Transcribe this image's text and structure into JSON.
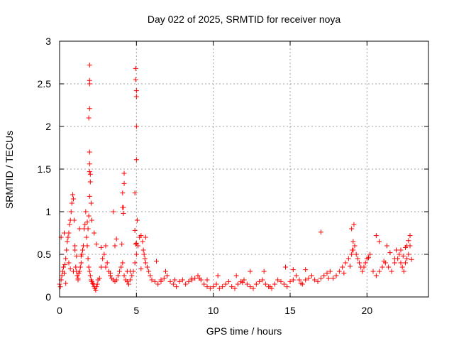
{
  "chart_data": {
    "type": "scatter",
    "title": "Day 022 of 2025, SRMTID for receiver noya",
    "xlabel": "GPS time / hours",
    "ylabel": "SRMTID / TECUs",
    "xlim": [
      0,
      24
    ],
    "ylim": [
      0,
      3
    ],
    "xticks": [
      0,
      5,
      10,
      15,
      20
    ],
    "yticks": [
      0,
      0.5,
      1,
      1.5,
      2,
      2.5,
      3
    ],
    "xtick_labels": [
      "0",
      "5",
      "10",
      "15",
      "20"
    ],
    "ytick_labels": [
      "0",
      "0.5",
      "1",
      "1.5",
      "2",
      "2.5",
      "3"
    ],
    "grid": true,
    "legend": "none",
    "marker": "+",
    "color": "#ff0000",
    "series": [
      {
        "name": "SRMTID",
        "x": [
          0.0,
          0.05,
          0.1,
          0.15,
          0.2,
          0.25,
          0.3,
          0.35,
          0.4,
          0.45,
          0.5,
          0.55,
          0.6,
          0.65,
          0.7,
          0.75,
          0.8,
          0.85,
          0.9,
          0.95,
          1.0,
          1.05,
          1.1,
          1.15,
          1.2,
          1.25,
          1.3,
          1.35,
          1.4,
          1.45,
          1.5,
          1.55,
          1.6,
          1.65,
          1.7,
          1.75,
          1.8,
          1.85,
          1.9,
          1.95,
          2.0,
          2.05,
          2.1,
          2.15,
          2.2,
          2.25,
          2.3,
          2.35,
          2.4,
          2.45,
          2.5,
          2.6,
          2.7,
          2.8,
          2.9,
          3.0,
          3.1,
          3.2,
          3.3,
          3.4,
          3.5,
          3.6,
          3.7,
          3.8,
          3.9,
          4.0,
          4.1,
          4.2,
          4.3,
          4.4,
          4.5,
          4.6,
          4.7,
          4.8,
          4.9,
          5.0,
          5.1,
          5.2,
          5.3,
          5.4,
          5.5,
          5.6,
          5.7,
          5.8,
          5.9,
          6.0,
          6.2,
          6.4,
          6.6,
          6.8,
          7.0,
          7.2,
          7.4,
          7.6,
          7.8,
          8.0,
          8.2,
          8.4,
          8.6,
          8.8,
          9.0,
          9.2,
          9.4,
          9.6,
          9.8,
          10.0,
          10.2,
          10.4,
          10.6,
          10.8,
          11.0,
          11.2,
          11.4,
          11.6,
          11.8,
          12.0,
          12.2,
          12.4,
          12.6,
          12.8,
          13.0,
          13.2,
          13.4,
          13.6,
          13.8,
          14.0,
          14.2,
          14.4,
          14.6,
          14.8,
          15.0,
          15.2,
          15.4,
          15.6,
          15.8,
          16.0,
          16.2,
          16.4,
          16.6,
          16.8,
          17.0,
          17.2,
          17.4,
          17.6,
          17.8,
          18.0,
          18.2,
          18.4,
          18.6,
          18.8,
          19.0,
          19.1,
          19.2,
          19.3,
          19.4,
          19.5,
          19.6,
          19.7,
          19.8,
          19.9,
          20.0,
          20.2,
          20.4,
          20.6,
          20.8,
          21.0,
          21.2,
          21.4,
          21.6,
          21.8,
          22.0,
          22.1,
          22.2,
          22.3,
          22.4,
          22.5,
          22.6,
          22.7,
          22.8,
          0.1,
          0.3,
          0.6,
          0.9,
          1.15,
          1.2,
          1.3,
          1.9,
          1.95,
          1.95,
          1.95,
          1.95,
          1.95,
          1.95,
          1.9,
          1.95,
          1.95,
          2.0,
          2.0,
          2.05,
          2.1,
          1.85,
          1.8,
          4.1,
          4.15,
          4.2,
          4.2,
          4.1,
          4.15,
          4.9,
          4.95,
          4.95,
          4.95,
          5.0,
          5.0,
          5.0,
          5.0,
          4.9,
          5.05,
          5.0,
          1.0,
          1.4,
          2.25,
          3.5,
          3.6,
          3.7,
          4.05,
          5.45,
          5.55,
          5.6,
          19.05,
          19.1,
          19.15,
          19.0,
          20.6,
          20.8,
          21.3,
          21.5,
          21.8,
          22.2,
          22.35,
          22.5,
          22.6,
          22.7,
          22.8,
          17.0,
          15.2,
          13.3,
          11.5,
          9.1,
          7.5,
          6.6,
          18.5,
          16.0,
          14.7,
          12.4,
          10.3,
          8.6,
          0.4,
          0.7,
          1.1,
          2.4,
          2.7,
          3.0,
          3.3,
          4.4,
          4.6,
          5.3,
          6.3,
          6.9,
          9.6,
          11.9,
          13.7,
          15.7,
          17.5,
          18.9,
          20.1,
          21.1,
          21.9,
          22.9
        ],
        "y": [
          0.15,
          0.12,
          0.2,
          0.25,
          0.3,
          0.35,
          0.28,
          0.38,
          0.45,
          0.55,
          0.65,
          0.7,
          0.75,
          0.85,
          0.9,
          1.0,
          1.1,
          1.2,
          1.15,
          0.9,
          0.6,
          0.35,
          0.3,
          0.25,
          0.2,
          0.28,
          0.3,
          0.35,
          0.4,
          0.5,
          0.55,
          0.6,
          0.8,
          0.85,
          1.0,
          0.7,
          0.6,
          0.45,
          0.35,
          0.3,
          0.25,
          0.2,
          0.18,
          0.16,
          0.15,
          0.12,
          0.1,
          0.08,
          0.12,
          0.15,
          0.2,
          0.22,
          0.35,
          0.45,
          0.5,
          0.6,
          0.4,
          0.3,
          0.25,
          0.22,
          0.2,
          0.18,
          0.2,
          0.25,
          0.3,
          0.35,
          0.4,
          0.25,
          0.2,
          0.18,
          0.15,
          0.2,
          0.25,
          0.3,
          0.4,
          0.5,
          0.6,
          0.7,
          0.72,
          0.65,
          0.5,
          0.4,
          0.35,
          0.3,
          0.25,
          0.2,
          0.18,
          0.15,
          0.2,
          0.22,
          0.25,
          0.18,
          0.15,
          0.12,
          0.18,
          0.2,
          0.15,
          0.18,
          0.2,
          0.22,
          0.25,
          0.2,
          0.15,
          0.12,
          0.1,
          0.12,
          0.15,
          0.1,
          0.12,
          0.15,
          0.18,
          0.12,
          0.1,
          0.15,
          0.18,
          0.2,
          0.15,
          0.12,
          0.1,
          0.15,
          0.18,
          0.2,
          0.15,
          0.12,
          0.1,
          0.15,
          0.2,
          0.18,
          0.15,
          0.12,
          0.18,
          0.2,
          0.25,
          0.2,
          0.15,
          0.2,
          0.22,
          0.25,
          0.2,
          0.18,
          0.22,
          0.25,
          0.28,
          0.3,
          0.22,
          0.25,
          0.3,
          0.35,
          0.4,
          0.45,
          0.5,
          0.55,
          0.6,
          0.5,
          0.45,
          0.4,
          0.35,
          0.3,
          0.35,
          0.4,
          0.45,
          0.5,
          0.3,
          0.25,
          0.3,
          0.35,
          0.4,
          0.35,
          0.3,
          0.4,
          0.45,
          0.5,
          0.4,
          0.35,
          0.3,
          0.4,
          0.45,
          0.5,
          0.6,
          0.7,
          0.75,
          0.4,
          0.3,
          0.25,
          0.22,
          0.8,
          0.95,
          1.56,
          1.18,
          2.72,
          2.54,
          2.5,
          2.21,
          2.1,
          1.7,
          1.47,
          1.44,
          1.35,
          1.1,
          0.9,
          0.8,
          0.88,
          1.05,
          0.98,
          1.45,
          1.33,
          1.22,
          1.05,
          0.78,
          0.62,
          2.68,
          2.55,
          2.42,
          2.35,
          2.0,
          1.61,
          1.22,
          0.9,
          0.63,
          0.55,
          0.48,
          0.75,
          1.0,
          0.6,
          0.68,
          0.62,
          0.55,
          0.45,
          0.7,
          0.55,
          0.65,
          0.85,
          0.8,
          0.72,
          0.65,
          0.6,
          0.52,
          0.45,
          0.55,
          0.48,
          0.58,
          0.6,
          0.66,
          0.72,
          0.76,
          0.32,
          0.3,
          0.25,
          0.22,
          0.2,
          0.18,
          0.28,
          0.32,
          0.35,
          0.3,
          0.25,
          0.22,
          0.16,
          0.33,
          0.48,
          0.62,
          0.58,
          0.35,
          0.28,
          0.3,
          0.3,
          0.33,
          0.42,
          0.3,
          0.2,
          0.17,
          0.12,
          0.16,
          0.22,
          0.36,
          0.46,
          0.42,
          0.55,
          0.44
        ]
      }
    ]
  }
}
